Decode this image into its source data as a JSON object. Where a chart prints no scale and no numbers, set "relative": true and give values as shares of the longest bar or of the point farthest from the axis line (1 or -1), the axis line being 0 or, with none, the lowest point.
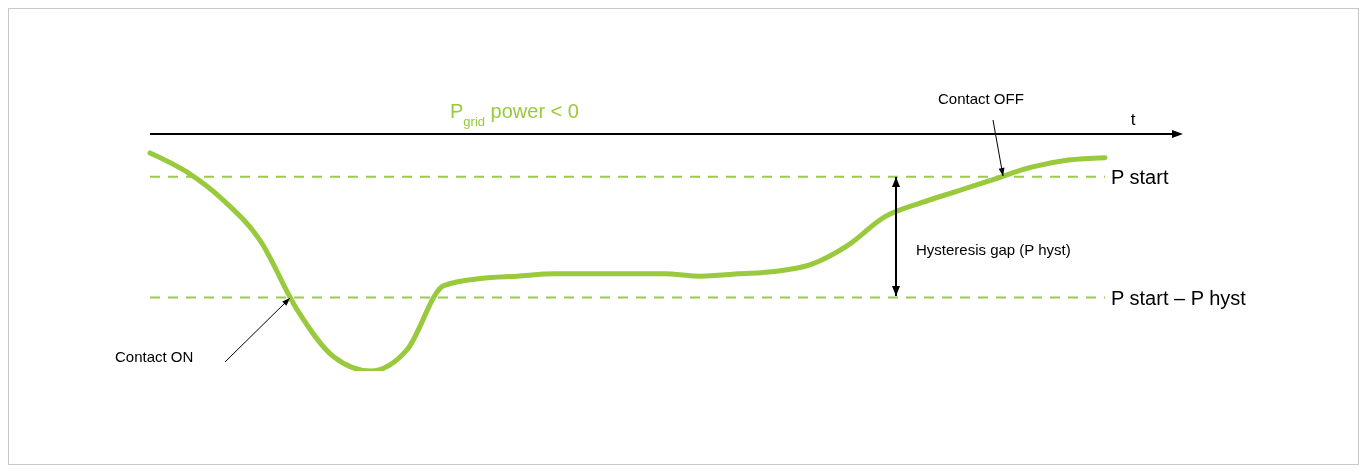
{
  "chart_data": {
    "type": "line",
    "title": "P$_{grid}$ power < 0",
    "xlabel": "t",
    "relative": true,
    "grid": false,
    "legend": false,
    "categories": [
      null,
      null,
      null,
      null,
      null,
      null,
      null,
      null,
      null,
      null,
      null,
      null,
      null,
      null,
      null,
      null,
      null,
      null,
      null,
      null,
      null,
      null,
      null,
      null,
      null,
      null,
      null
    ],
    "series": [
      {
        "color": "#99c93c",
        "values": [
          -0.08,
          -0.16,
          -0.28,
          -0.45,
          -0.74,
          -0.94,
          -1,
          -0.91,
          -0.64,
          -0.61,
          -0.6,
          -0.59,
          -0.59,
          -0.59,
          -0.59,
          -0.6,
          -0.59,
          -0.58,
          -0.55,
          -0.47,
          -0.35,
          -0.29,
          -0.24,
          -0.19,
          -0.14,
          -0.11,
          -0.1
        ]
      }
    ],
    "ref_lines": [
      {
        "axis": "y",
        "value": -0.18,
        "label": "P start",
        "color": "#9bcb4a",
        "line_style": "dashed"
      },
      {
        "axis": "y",
        "value": -0.69,
        "label": "P start – P hyst",
        "color": "#9bcb4a",
        "line_style": "dashed"
      }
    ],
    "annotations": [
      "Contact ON",
      "Contact OFF",
      "Hysteresis gap (P hyst)"
    ]
  }
}
